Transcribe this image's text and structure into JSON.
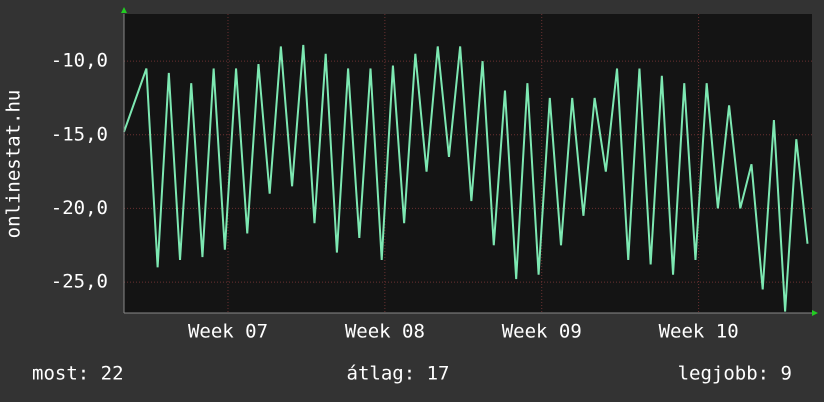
{
  "chart_data": {
    "type": "line",
    "y_label": "onlinestat.hu",
    "x": [
      0,
      1,
      1.5,
      2,
      2.5,
      3,
      3.5,
      4,
      4.5,
      5,
      5.5,
      6,
      6.5,
      7,
      7.5,
      8,
      8.5,
      9,
      9.5,
      10,
      10.5,
      11,
      11.5,
      12,
      12.5,
      13,
      13.5,
      14,
      14.5,
      15,
      15.5,
      16,
      16.5,
      17,
      17.5,
      18,
      18.5,
      19,
      19.5,
      20,
      20.5,
      21,
      21.5,
      22,
      22.5,
      23,
      23.5,
      24,
      24.5,
      25,
      25.5,
      26,
      26.5,
      27,
      27.5,
      28,
      28.5,
      29,
      29.5,
      30,
      30.5
    ],
    "series": [
      {
        "color": "#7de8b2",
        "values": [
          -14.8,
          -10.5,
          -24,
          -10.8,
          -23.5,
          -11.5,
          -23.3,
          -10.5,
          -22.8,
          -10.5,
          -21.7,
          -10.2,
          -19,
          -9,
          -18.5,
          -8.9,
          -21,
          -9.5,
          -23,
          -10.5,
          -22,
          -10.5,
          -23.5,
          -10.3,
          -21,
          -9.5,
          -17.5,
          -9,
          -16.5,
          -9,
          -19.5,
          -10,
          -22.5,
          -12,
          -24.8,
          -11.5,
          -24.5,
          -12.5,
          -22.5,
          -12.5,
          -20.5,
          -12.5,
          -17.5,
          -10.5,
          -23.5,
          -10.5,
          -23.8,
          -11,
          -24.5,
          -11.5,
          -23.5,
          -11.5,
          -20,
          -13,
          -20,
          -17,
          -25.5,
          -14,
          -27,
          -15.3,
          -22.4
        ]
      }
    ],
    "xlim": [
      0,
      30.7
    ],
    "xticks": [
      {
        "value": 4.64,
        "label": "Week 07"
      },
      {
        "value": 11.64,
        "label": "Week 08"
      },
      {
        "value": 18.64,
        "label": "Week 09"
      },
      {
        "value": 25.64,
        "label": "Week 10"
      }
    ],
    "ylim": [
      -27.1,
      -6.8
    ],
    "yticks": [
      {
        "value": -25,
        "label": "-25,0"
      },
      {
        "value": -20,
        "label": "-20,0"
      },
      {
        "value": -15,
        "label": "-15,0"
      },
      {
        "value": -10,
        "label": "-10,0"
      }
    ],
    "grid": true,
    "footer": [
      "most: 22",
      "átlag: 17",
      "legjobb: 9"
    ]
  }
}
